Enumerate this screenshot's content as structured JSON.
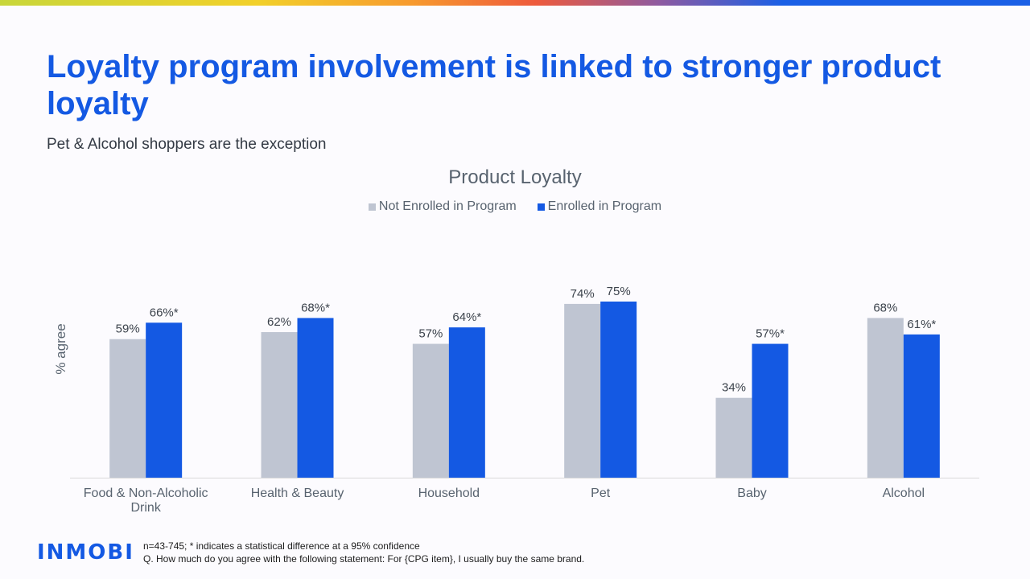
{
  "slide": {
    "title": "Loyalty program involvement is linked to stronger product loyalty",
    "subtitle": "Pet & Alcohol shoppers are the exception"
  },
  "footer": {
    "logo": "INMOBI",
    "note": "n=43-745; * indicates a statistical difference at a 95% confidence",
    "question": "Q. How much do you agree with the following statement: For {CPG item}, I usually buy the same brand."
  },
  "colors": {
    "not_enrolled": "#bfc5d2",
    "enrolled": "#1459e3",
    "title": "#1459e3"
  },
  "chart_data": {
    "type": "bar",
    "title": "Product Loyalty",
    "ylabel": "% agree",
    "xlabel": "",
    "ylim": [
      0,
      80
    ],
    "grid": false,
    "legend_position": "top-center",
    "categories": [
      "Food & Non-Alcoholic Drink",
      "Health & Beauty",
      "Household",
      "Pet",
      "Baby",
      "Alcohol"
    ],
    "series": [
      {
        "name": "Not Enrolled in Program",
        "values": [
          59,
          62,
          57,
          74,
          34,
          68
        ],
        "labels": [
          "59%",
          "62%",
          "57%",
          "74%",
          "34%",
          "68%"
        ]
      },
      {
        "name": "Enrolled in Program",
        "values": [
          66,
          68,
          64,
          75,
          57,
          61
        ],
        "labels": [
          "66%*",
          "68%*",
          "64%*",
          "75%",
          "57%*",
          "61%*"
        ]
      }
    ]
  }
}
